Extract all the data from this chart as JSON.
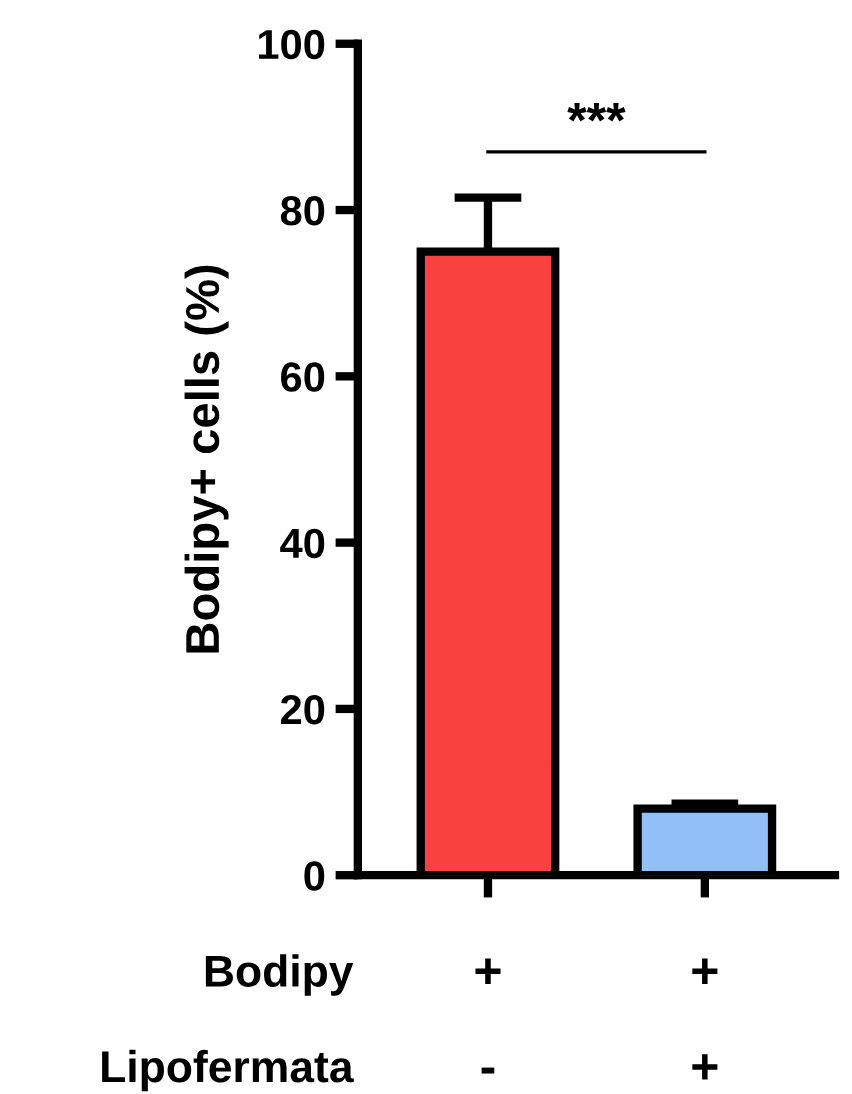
{
  "chart_data": {
    "type": "bar",
    "ylabel": "Bodipy+ cells (%)",
    "categories": [
      "+\n-",
      "+\n+"
    ],
    "values": [
      75,
      8
    ],
    "errors": [
      6.5,
      0.6
    ],
    "colors": [
      "#f94141",
      "#92bff7"
    ],
    "ylim": [
      0,
      100
    ],
    "yticks": [
      0,
      20,
      40,
      60,
      80,
      100
    ],
    "grid": false,
    "annotations": [
      "Bodipy",
      "Lipofermata",
      "***"
    ]
  }
}
